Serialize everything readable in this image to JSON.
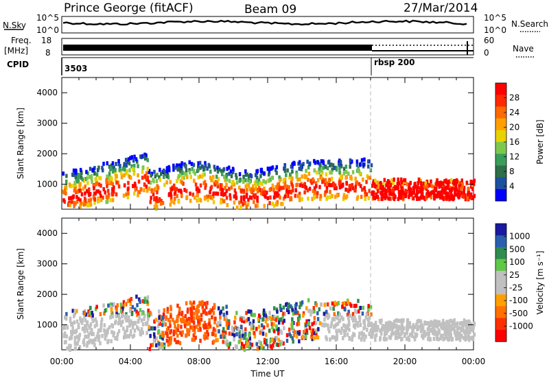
{
  "header": {
    "station": "Prince George (fitACF)",
    "beam": "Beam 09",
    "date": "27/Mar/2014"
  },
  "strips": {
    "nsky_label": "N.Sky",
    "nsky_ticks": [
      "10^5",
      "10^0"
    ],
    "nsearch_label": "N.Search",
    "nsearch_ticks": [
      "10^5",
      "10^0"
    ],
    "freq_label": "Freq.",
    "freq_unit": "[MHz]",
    "freq_ticks": [
      "18",
      "8"
    ],
    "nave_label": "Nave",
    "nave_ticks": [
      "60",
      "0"
    ],
    "cpid_label": "CPID",
    "cpid_values": [
      {
        "text": "3503",
        "start_hour": 0
      },
      {
        "text": "rbsp 200",
        "start_hour": 18
      }
    ]
  },
  "chart_data": [
    {
      "type": "heatmap",
      "title": "Power",
      "xlabel": "Time UT",
      "ylabel": "Slant Range [km]",
      "xlim_hours": [
        0,
        24
      ],
      "ylim": [
        180,
        4500
      ],
      "x_ticks": [
        "00:00",
        "04:00",
        "08:00",
        "12:00",
        "16:00",
        "20:00",
        "00:00"
      ],
      "y_ticks": [
        1000,
        2000,
        3000,
        4000
      ],
      "colorbar": {
        "label": "Power [dB]",
        "ticks": [
          "28",
          "24",
          "20",
          "16",
          "12",
          "8",
          "4"
        ],
        "colors": [
          "#ff0000",
          "#ff2a00",
          "#ff6a00",
          "#ffa000",
          "#e8d200",
          "#7ec850",
          "#3a9e5a",
          "#2e6e48",
          "#1e50a0",
          "#0000ff"
        ]
      }
    },
    {
      "type": "heatmap",
      "title": "Velocity",
      "xlabel": "Time UT",
      "ylabel": "Slant Range [km]",
      "xlim_hours": [
        0,
        24
      ],
      "ylim": [
        180,
        4500
      ],
      "x_ticks": [
        "00:00",
        "04:00",
        "08:00",
        "12:00",
        "16:00",
        "20:00",
        "00:00"
      ],
      "y_ticks": [
        1000,
        2000,
        3000,
        4000
      ],
      "colorbar": {
        "label": "Velocity [m s⁻¹]",
        "ticks": [
          "1000",
          "500",
          "100",
          "25",
          "-25",
          "-100",
          "-500",
          "-1000"
        ],
        "colors": [
          "#1a1aa0",
          "#2a5fb0",
          "#2e8c50",
          "#60c848",
          "#c0c0c0",
          "#c0c0c0",
          "#ffa000",
          "#ff7000",
          "#ff3000",
          "#ff0000"
        ]
      }
    }
  ],
  "time_axis": {
    "label": "Time UT",
    "ticks": [
      "00:00",
      "04:00",
      "08:00",
      "12:00",
      "16:00",
      "20:00",
      "00:00"
    ]
  }
}
